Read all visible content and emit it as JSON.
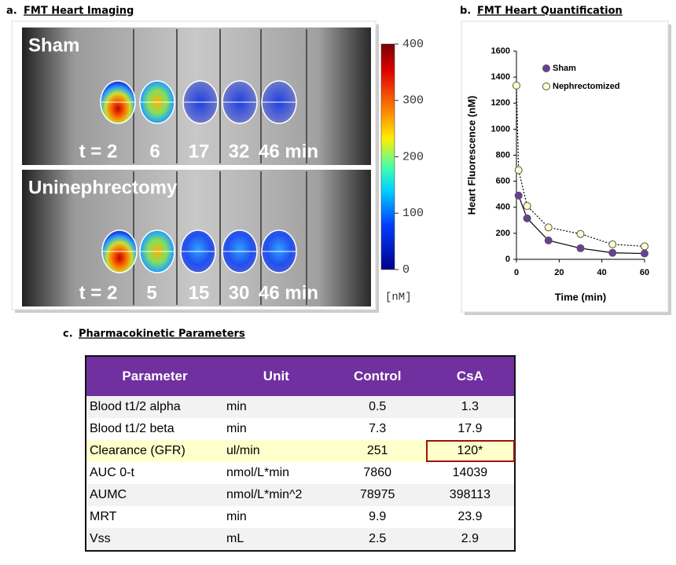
{
  "panel_a": {
    "label": "a.",
    "title": "FMT Heart Imaging",
    "rows": [
      {
        "name": "Sham",
        "times": [
          "t = 2",
          "6",
          "17",
          "32",
          "46 min"
        ]
      },
      {
        "name": "Uninephrectomy",
        "times": [
          "t = 2",
          "5",
          "15",
          "30",
          "46 min"
        ]
      }
    ],
    "colorbar": {
      "lim": [
        0,
        400
      ],
      "ticks": [
        0,
        100,
        200,
        300,
        400
      ],
      "unit": "[nM]"
    }
  },
  "chart_data": {
    "type": "scatter",
    "label": "b.",
    "title": "FMT Heart Quantification",
    "xlabel": "Time (min)",
    "ylabel": "Heart Fluorescence (nM)",
    "xlim": [
      0,
      60
    ],
    "xticks": [
      0,
      20,
      40,
      60
    ],
    "ylim": [
      0,
      1600
    ],
    "yticks": [
      0,
      200,
      400,
      600,
      800,
      1000,
      1200,
      1400,
      1600
    ],
    "legend": "upper right",
    "series": [
      {
        "name": "Sham",
        "color": "#6a3d9a",
        "linestyle": "solid",
        "x": [
          1,
          5,
          15,
          30,
          45,
          60
        ],
        "values": [
          490,
          315,
          145,
          85,
          50,
          45
        ]
      },
      {
        "name": "Nephrectomized",
        "color": "#ffffcc",
        "linestyle": "dotted",
        "x": [
          0,
          1,
          5,
          15,
          30,
          45,
          60
        ],
        "values": [
          1335,
          685,
          410,
          245,
          195,
          115,
          100
        ]
      }
    ]
  },
  "panel_c": {
    "label": "c.",
    "title": "Pharmacokinetic Parameters",
    "table": {
      "header": [
        "Parameter",
        "Unit",
        "Control",
        "CsA"
      ],
      "rows": [
        [
          "Blood t1/2 alpha",
          "min",
          "0.5",
          "1.3"
        ],
        [
          "Blood t1/2 beta",
          "min",
          "7.3",
          "17.9"
        ],
        [
          "Clearance (GFR)",
          "ul/min",
          "251",
          "120*"
        ],
        [
          "AUC 0-t",
          "nmol/L*min",
          "7860",
          "14039"
        ],
        [
          "AUMC",
          "nmol/L*min^2",
          "78975",
          "398113"
        ],
        [
          "MRT",
          "min",
          "9.9",
          "23.9"
        ],
        [
          "Vss",
          "mL",
          "2.5",
          "2.9"
        ]
      ]
    },
    "highlight_row": 2,
    "flagged_cell": [
      2,
      3
    ]
  }
}
